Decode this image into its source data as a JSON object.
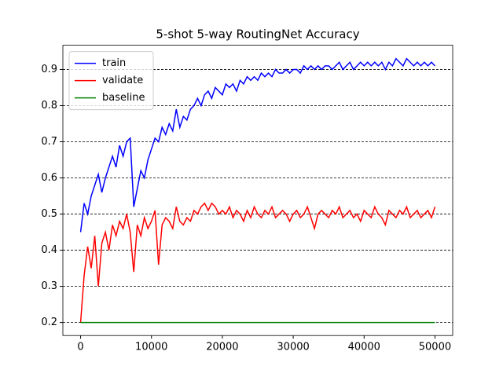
{
  "chart_data": {
    "type": "line",
    "title": "5-shot 5-way RoutingNet Accuracy",
    "x": [
      0,
      500,
      1000,
      1500,
      2000,
      2500,
      3000,
      3500,
      4000,
      4500,
      5000,
      5500,
      6000,
      6500,
      7000,
      7500,
      8000,
      8500,
      9000,
      9500,
      10000,
      10500,
      11000,
      11500,
      12000,
      12500,
      13000,
      13500,
      14000,
      14500,
      15000,
      15500,
      16000,
      16500,
      17000,
      17500,
      18000,
      18500,
      19000,
      19500,
      20000,
      20500,
      21000,
      21500,
      22000,
      22500,
      23000,
      23500,
      24000,
      24500,
      25000,
      25500,
      26000,
      26500,
      27000,
      27500,
      28000,
      28500,
      29000,
      29500,
      30000,
      30500,
      31000,
      31500,
      32000,
      32500,
      33000,
      33500,
      34000,
      34500,
      35000,
      35500,
      36000,
      36500,
      37000,
      37500,
      38000,
      38500,
      39000,
      39500,
      40000,
      40500,
      41000,
      41500,
      42000,
      42500,
      43000,
      43500,
      44000,
      44500,
      45000,
      45500,
      46000,
      46500,
      47000,
      47500,
      48000,
      48500,
      49000,
      49500,
      50000
    ],
    "series": [
      {
        "name": "train",
        "color": "#0000ff",
        "values": [
          0.45,
          0.53,
          0.5,
          0.55,
          0.58,
          0.61,
          0.56,
          0.6,
          0.63,
          0.66,
          0.63,
          0.69,
          0.66,
          0.7,
          0.71,
          0.52,
          0.57,
          0.62,
          0.6,
          0.65,
          0.68,
          0.71,
          0.7,
          0.74,
          0.72,
          0.75,
          0.73,
          0.79,
          0.74,
          0.77,
          0.76,
          0.79,
          0.8,
          0.82,
          0.8,
          0.83,
          0.84,
          0.82,
          0.85,
          0.84,
          0.83,
          0.86,
          0.85,
          0.86,
          0.84,
          0.87,
          0.86,
          0.88,
          0.87,
          0.88,
          0.87,
          0.89,
          0.88,
          0.89,
          0.88,
          0.9,
          0.89,
          0.89,
          0.9,
          0.89,
          0.9,
          0.9,
          0.89,
          0.91,
          0.9,
          0.91,
          0.9,
          0.91,
          0.9,
          0.91,
          0.91,
          0.9,
          0.91,
          0.92,
          0.9,
          0.91,
          0.92,
          0.9,
          0.91,
          0.92,
          0.91,
          0.92,
          0.91,
          0.92,
          0.91,
          0.92,
          0.9,
          0.92,
          0.91,
          0.93,
          0.92,
          0.91,
          0.93,
          0.92,
          0.91,
          0.92,
          0.91,
          0.92,
          0.91,
          0.92,
          0.91
        ]
      },
      {
        "name": "validate",
        "color": "#ff0000",
        "values": [
          0.2,
          0.33,
          0.41,
          0.35,
          0.44,
          0.3,
          0.42,
          0.45,
          0.4,
          0.47,
          0.44,
          0.48,
          0.46,
          0.5,
          0.45,
          0.34,
          0.47,
          0.44,
          0.49,
          0.46,
          0.48,
          0.51,
          0.36,
          0.47,
          0.49,
          0.48,
          0.46,
          0.52,
          0.48,
          0.47,
          0.49,
          0.48,
          0.51,
          0.5,
          0.52,
          0.53,
          0.51,
          0.53,
          0.52,
          0.5,
          0.51,
          0.5,
          0.52,
          0.49,
          0.51,
          0.5,
          0.48,
          0.51,
          0.49,
          0.52,
          0.5,
          0.49,
          0.51,
          0.5,
          0.52,
          0.49,
          0.5,
          0.51,
          0.5,
          0.48,
          0.5,
          0.51,
          0.49,
          0.5,
          0.52,
          0.49,
          0.46,
          0.5,
          0.51,
          0.5,
          0.49,
          0.51,
          0.5,
          0.52,
          0.49,
          0.5,
          0.51,
          0.49,
          0.5,
          0.48,
          0.51,
          0.5,
          0.49,
          0.52,
          0.5,
          0.49,
          0.47,
          0.51,
          0.5,
          0.49,
          0.51,
          0.5,
          0.52,
          0.49,
          0.5,
          0.51,
          0.49,
          0.5,
          0.51,
          0.49,
          0.52
        ]
      },
      {
        "name": "baseline",
        "color": "#008000",
        "values": [
          0.2,
          0.2,
          0.2,
          0.2,
          0.2,
          0.2,
          0.2,
          0.2,
          0.2,
          0.2,
          0.2,
          0.2,
          0.2,
          0.2,
          0.2,
          0.2,
          0.2,
          0.2,
          0.2,
          0.2,
          0.2,
          0.2,
          0.2,
          0.2,
          0.2,
          0.2,
          0.2,
          0.2,
          0.2,
          0.2,
          0.2,
          0.2,
          0.2,
          0.2,
          0.2,
          0.2,
          0.2,
          0.2,
          0.2,
          0.2,
          0.2,
          0.2,
          0.2,
          0.2,
          0.2,
          0.2,
          0.2,
          0.2,
          0.2,
          0.2,
          0.2,
          0.2,
          0.2,
          0.2,
          0.2,
          0.2,
          0.2,
          0.2,
          0.2,
          0.2,
          0.2,
          0.2,
          0.2,
          0.2,
          0.2,
          0.2,
          0.2,
          0.2,
          0.2,
          0.2,
          0.2,
          0.2,
          0.2,
          0.2,
          0.2,
          0.2,
          0.2,
          0.2,
          0.2,
          0.2,
          0.2,
          0.2,
          0.2,
          0.2,
          0.2,
          0.2,
          0.2,
          0.2,
          0.2,
          0.2,
          0.2,
          0.2,
          0.2,
          0.2,
          0.2,
          0.2,
          0.2,
          0.2,
          0.2,
          0.2,
          0.2
        ]
      }
    ],
    "xlim": [
      -2500,
      52500
    ],
    "xticks": [
      0,
      10000,
      20000,
      30000,
      40000,
      50000
    ],
    "ylim": [
      0.164,
      0.967
    ],
    "yticks": [
      0.2,
      0.3,
      0.4,
      0.5,
      0.6,
      0.7,
      0.8,
      0.9
    ],
    "grid": true,
    "legend": "upper-left"
  }
}
